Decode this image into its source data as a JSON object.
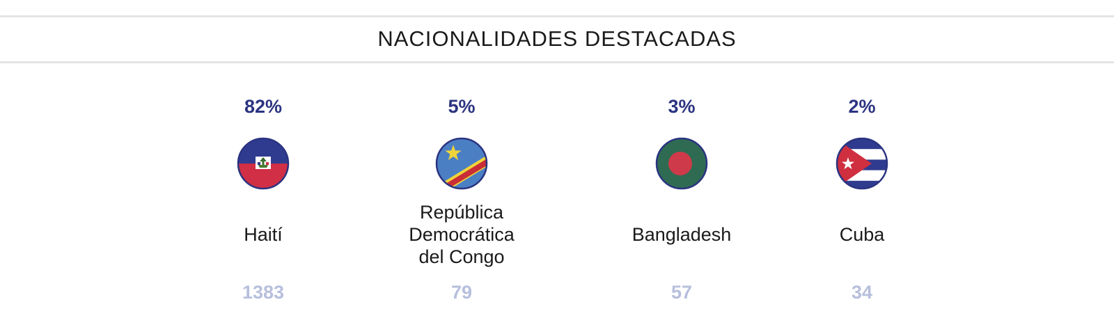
{
  "section": {
    "title": "NACIONALIDADES DESTACADAS"
  },
  "nationalities": [
    {
      "percent": "82%",
      "name": "Haití",
      "count": "1383",
      "flag_icon": "haiti-flag-icon"
    },
    {
      "percent": "5%",
      "name": "República\nDemocrática\ndel Congo",
      "count": "79",
      "flag_icon": "dr-congo-flag-icon"
    },
    {
      "percent": "3%",
      "name": "Bangladesh",
      "count": "57",
      "flag_icon": "bangladesh-flag-icon"
    },
    {
      "percent": "2%",
      "name": "Cuba",
      "count": "34",
      "flag_icon": "cuba-flag-icon"
    }
  ],
  "colors": {
    "percent_text": "#2b3480",
    "count_text": "#b7bfdc",
    "flag_ring": "#2b3480",
    "divider": "#e4e4e6"
  }
}
